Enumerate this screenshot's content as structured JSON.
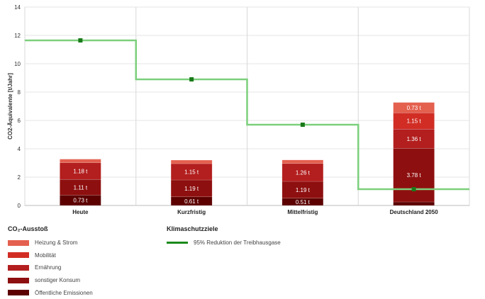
{
  "chart_data": {
    "type": "bar",
    "stacked": true,
    "ylabel": "CO2-Äquivalente [t/Jahr]",
    "ylim": [
      0,
      14
    ],
    "yticks": [
      0,
      2,
      4,
      6,
      8,
      10,
      12,
      14
    ],
    "grid": true,
    "categories": [
      "Heute",
      "Kurzfristig",
      "Mittelfristig",
      "Deutschland 2050"
    ],
    "series": [
      {
        "name": "Öffentliche Emissionen",
        "color": "#5c0000",
        "values": [
          0.73,
          0.61,
          0.51,
          0.25
        ],
        "labels": [
          "0.73 t",
          "0.61 t",
          "0.51 t",
          ""
        ]
      },
      {
        "name": "sonstiger Konsum",
        "color": "#8e0f0f",
        "values": [
          1.11,
          1.19,
          1.19,
          3.78
        ],
        "labels": [
          "1.11 t",
          "1.19 t",
          "1.19 t",
          "3.78 t"
        ]
      },
      {
        "name": "Ernährung",
        "color": "#b31e1e",
        "values": [
          1.18,
          1.15,
          1.26,
          1.36
        ],
        "labels": [
          "1.18 t",
          "1.15 t",
          "1.26 t",
          "1.36 t"
        ]
      },
      {
        "name": "Mobilität",
        "color": "#d12d24",
        "values": [
          0.0,
          0.0,
          0.0,
          1.15
        ],
        "labels": [
          "",
          "",
          "",
          "1.15 t"
        ]
      },
      {
        "name": "Heizung & Strom",
        "color": "#e4604f",
        "values": [
          0.25,
          0.25,
          0.25,
          0.73
        ],
        "labels": [
          "",
          "",
          "",
          "0.73 t"
        ]
      }
    ],
    "target_line": {
      "name": "95% Reduktion der Treibhausgase",
      "color": "#7ccf7c",
      "marker_color": "#1a7a1a",
      "values": [
        11.65,
        8.9,
        5.7,
        1.15
      ]
    }
  },
  "legend": {
    "emissions_title": "CO₂-Ausstoß",
    "targets_title": "Klimaschutzziele",
    "items": [
      {
        "label": "Heizung & Strom",
        "color": "#e4604f"
      },
      {
        "label": "Mobilität",
        "color": "#d12d24"
      },
      {
        "label": "Ernährung",
        "color": "#b31e1e"
      },
      {
        "label": "sonstiger Konsum",
        "color": "#8e0f0f"
      },
      {
        "label": "Öffentliche Emissionen",
        "color": "#5c0000"
      }
    ],
    "target_item": {
      "label": "95% Reduktion der Treibhausgase",
      "color": "#1a8a1a"
    }
  }
}
